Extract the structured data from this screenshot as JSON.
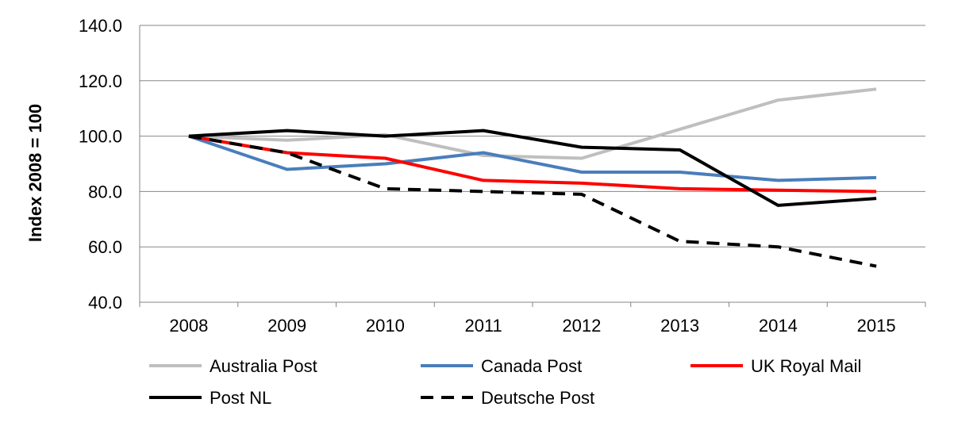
{
  "chart_data": {
    "type": "line",
    "title": "",
    "xlabel": "",
    "ylabel": "Index 2008 = 100",
    "categories": [
      "2008",
      "2009",
      "2010",
      "2011",
      "2012",
      "2013",
      "2014",
      "2015"
    ],
    "ylim": [
      40,
      140
    ],
    "yticks": [
      "40.0",
      "60.0",
      "80.0",
      "100.0",
      "120.0",
      "140.0"
    ],
    "grid": true,
    "legend_position": "bottom",
    "series": [
      {
        "name": "Australia Post",
        "color": "#bfbfbf",
        "dash": "solid",
        "values": [
          100,
          98.5,
          100.5,
          93,
          92,
          102.5,
          113,
          117
        ]
      },
      {
        "name": "Canada Post",
        "color": "#4a7ebb",
        "dash": "solid",
        "values": [
          100,
          88,
          90,
          94,
          87,
          87,
          84,
          85
        ]
      },
      {
        "name": "UK Royal Mail",
        "color": "#ff0000",
        "dash": "solid",
        "values": [
          100,
          94,
          92,
          84,
          83,
          81,
          80.5,
          80
        ]
      },
      {
        "name": "Post NL",
        "color": "#000000",
        "dash": "solid",
        "values": [
          100,
          102,
          100,
          102,
          96,
          95,
          75,
          77.5
        ]
      },
      {
        "name": "Deutsche Post",
        "color": "#000000",
        "dash": "dashed",
        "values": [
          100,
          94,
          81,
          80,
          79,
          62,
          60,
          53
        ]
      }
    ]
  }
}
